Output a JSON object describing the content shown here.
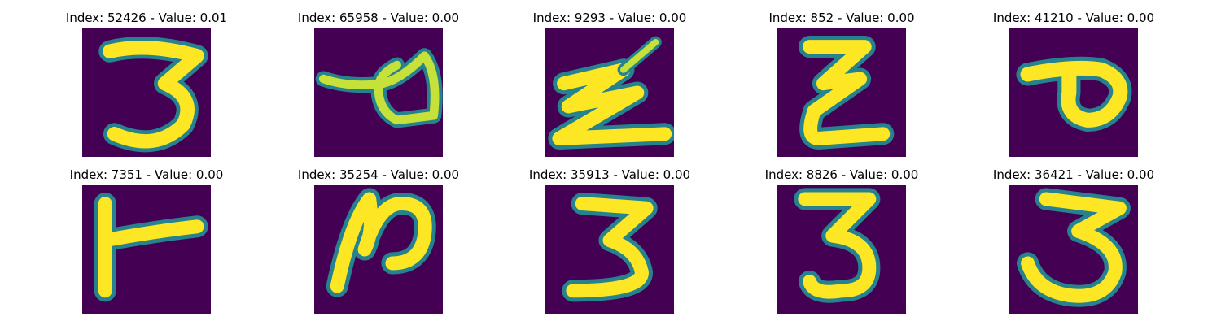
{
  "colors": {
    "background": "#440154",
    "edge": "#26828e",
    "mid": "#35b779",
    "foreground": "#fde725"
  },
  "panels": [
    {
      "title": "Index: 52426 - Value: 0.01",
      "digit": "3"
    },
    {
      "title": "Index: 65958 - Value: 0.00",
      "digit": "a"
    },
    {
      "title": "Index: 9293 - Value: 0.00",
      "digit": "z"
    },
    {
      "title": "Index: 852 - Value: 0.00",
      "digit": "z"
    },
    {
      "title": "Index: 41210 - Value: 0.00",
      "digit": "p"
    },
    {
      "title": "Index: 7351 - Value: 0.00",
      "digit": "t"
    },
    {
      "title": "Index: 35254 - Value: 0.00",
      "digit": "n"
    },
    {
      "title": "Index: 35913 - Value: 0.00",
      "digit": "3"
    },
    {
      "title": "Index: 8826 - Value: 0.00",
      "digit": "3"
    },
    {
      "title": "Index: 36421 - Value: 0.00",
      "digit": "3"
    }
  ]
}
